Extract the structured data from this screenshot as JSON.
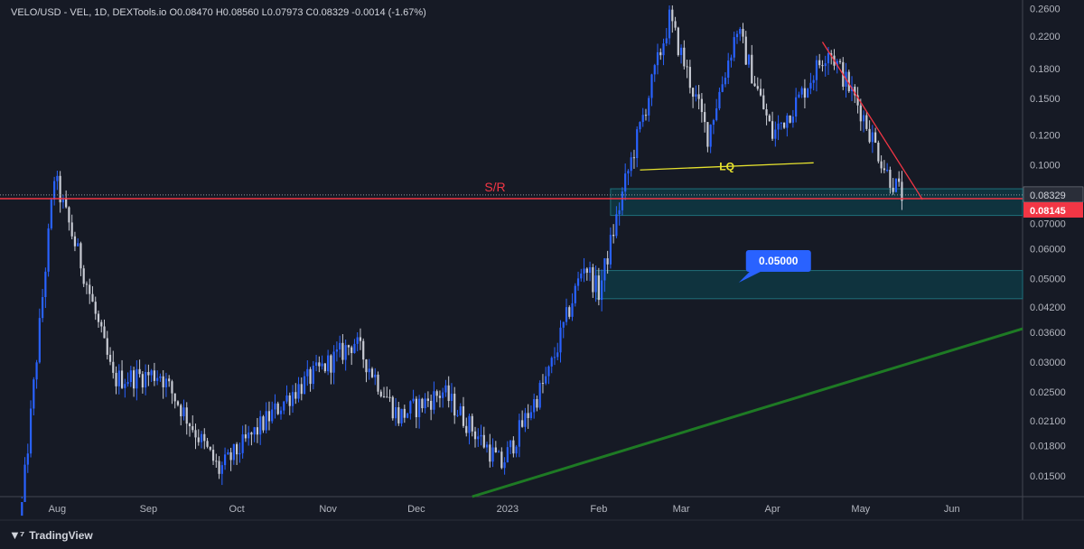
{
  "header": {
    "legend_text": "VELO/USD - VEL, 1D, DEXTools.io  O0.08470  H0.08560  L0.07973  C0.08329  -0.0014 (-1.67%)"
  },
  "footer": {
    "brand": "TradingView",
    "logo_icon": "tradingview-logo-icon"
  },
  "colors": {
    "background": "#161a25",
    "bull": "#2962ff",
    "bear": "#c8cbd4",
    "sr_line": "#f23645",
    "trendline_down": "#f23645",
    "trendline_up": "#1e7a24",
    "lq_line": "#e6e22e",
    "zone_fill": "#0e3a45",
    "zone_border": "#1f6f7a",
    "price_label_bg": "#f23645",
    "target_label_bg": "#2962ff"
  },
  "chart_data": {
    "type": "candlestick",
    "title": "VELO/USD - VEL, 1D, DEXTools.io",
    "ohlc_last": {
      "open": 0.0847,
      "high": 0.0856,
      "low": 0.07973,
      "close": 0.08329,
      "change": "-0.0014 (-1.67%)"
    },
    "y_scale": "log",
    "ylim": [
      0.0132,
      0.265
    ],
    "y_ticks": [
      "0.2600",
      "0.2200",
      "0.1800",
      "0.1500",
      "0.1200",
      "0.1000",
      "0.08329",
      "0.07000",
      "0.06000",
      "0.05000",
      "0.04200",
      "0.03600",
      "0.03000",
      "0.02500",
      "0.02100",
      "0.01800",
      "0.01500"
    ],
    "x_ticks": [
      "Aug",
      "Sep",
      "Oct",
      "Nov",
      "Dec",
      "2023",
      "Feb",
      "Mar",
      "Apr",
      "May",
      "Jun"
    ],
    "price_labels": {
      "current": "0.08329",
      "sr_level": "0.08145"
    },
    "annotations": {
      "sr_label": "S/R",
      "sr_value": 0.08145,
      "lq_label": "LQ",
      "lq_value": 0.097,
      "target_label": "0.05000",
      "zones": [
        {
          "name": "upper-zone",
          "from": 0.0735,
          "to": 0.0865
        },
        {
          "name": "lower-zone",
          "from": 0.0442,
          "to": 0.0525
        }
      ]
    },
    "key_points": [
      {
        "x": "Jul 20",
        "y": 0.0125
      },
      {
        "x": "Jul 31",
        "y": 0.093
      },
      {
        "x": "Aug 10",
        "y": 0.052
      },
      {
        "x": "Aug 20",
        "y": 0.027
      },
      {
        "x": "Sep 05",
        "y": 0.028
      },
      {
        "x": "Sep 25",
        "y": 0.0155
      },
      {
        "x": "Oct 20",
        "y": 0.025
      },
      {
        "x": "Nov 10",
        "y": 0.034
      },
      {
        "x": "Nov 25",
        "y": 0.0215
      },
      {
        "x": "Dec 10",
        "y": 0.025
      },
      {
        "x": "Dec 30",
        "y": 0.016
      },
      {
        "x": "Jan 15",
        "y": 0.028
      },
      {
        "x": "Jan 27",
        "y": 0.055
      },
      {
        "x": "Feb 01",
        "y": 0.046
      },
      {
        "x": "Feb 10",
        "y": 0.09
      },
      {
        "x": "Feb 25",
        "y": 0.245
      },
      {
        "x": "Mar 10",
        "y": 0.12
      },
      {
        "x": "Mar 20",
        "y": 0.23
      },
      {
        "x": "Apr 01",
        "y": 0.12
      },
      {
        "x": "Apr 10",
        "y": 0.15
      },
      {
        "x": "Apr 20",
        "y": 0.205
      },
      {
        "x": "May 01",
        "y": 0.14
      },
      {
        "x": "May 10",
        "y": 0.095
      },
      {
        "x": "May 15",
        "y": 0.0833
      }
    ]
  }
}
